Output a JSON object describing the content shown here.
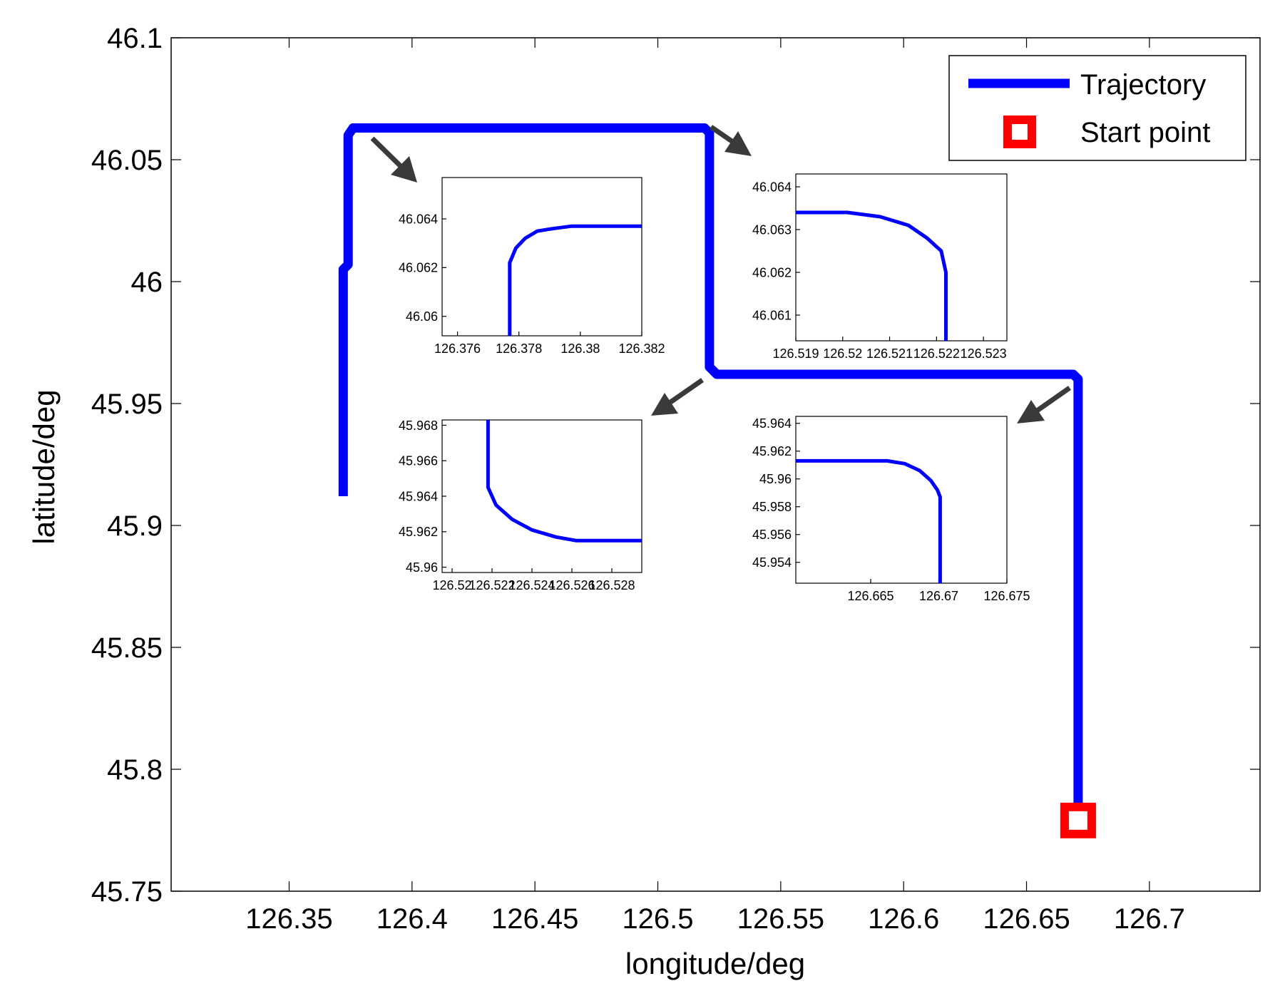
{
  "colors": {
    "trajectory": "#0000ff",
    "start": "#ff0000",
    "axes": "#000000",
    "arrow": "#3a3a3a"
  },
  "chart_data": [
    {
      "type": "line",
      "role": "main",
      "xlabel": "longitude/deg",
      "ylabel": "latitude/deg",
      "xlim": [
        126.302,
        126.745
      ],
      "ylim": [
        45.75,
        46.1
      ],
      "xticks": [
        "126.35",
        "126.4",
        "126.45",
        "126.5",
        "126.55",
        "126.6",
        "126.65",
        "126.7"
      ],
      "xtick_values": [
        126.35,
        126.4,
        126.45,
        126.5,
        126.55,
        126.6,
        126.65,
        126.7
      ],
      "yticks": [
        "45.75",
        "45.8",
        "45.85",
        "45.9",
        "45.95",
        "46",
        "46.05",
        "46.1"
      ],
      "ytick_values": [
        45.75,
        45.8,
        45.85,
        45.9,
        45.95,
        46.0,
        46.05,
        46.1
      ],
      "grid": false,
      "legend": {
        "placement": "top-right",
        "entries": [
          "Trajectory",
          "Start point"
        ]
      },
      "series": [
        {
          "name": "Trajectory",
          "x": [
            126.372,
            126.372,
            126.374,
            126.374,
            126.376,
            126.519,
            126.521,
            126.521,
            126.524,
            126.669,
            126.671,
            126.671
          ],
          "y": [
            45.912,
            46.005,
            46.007,
            46.06,
            46.063,
            46.063,
            46.061,
            45.965,
            45.962,
            45.962,
            45.96,
            45.782
          ]
        },
        {
          "name": "Start point",
          "x": [
            126.671
          ],
          "y": [
            45.779
          ]
        }
      ]
    },
    {
      "type": "line",
      "role": "inset",
      "xlim": [
        126.3755,
        126.382
      ],
      "ylim": [
        46.0592,
        46.0657
      ],
      "xticks": [
        "126.376",
        "126.378",
        "126.38",
        "126.382"
      ],
      "xtick_values": [
        126.376,
        126.378,
        126.38,
        126.382
      ],
      "yticks": [
        "46.06",
        "46.062",
        "46.064"
      ],
      "ytick_values": [
        46.06,
        46.062,
        46.064
      ],
      "series": [
        {
          "x": [
            126.3777,
            126.3777,
            126.3779,
            126.3782,
            126.3786,
            126.3791,
            126.3797,
            126.382
          ],
          "y": [
            46.0592,
            46.0622,
            46.0628,
            46.0632,
            46.0635,
            46.0636,
            46.0637,
            46.0637
          ]
        }
      ]
    },
    {
      "type": "line",
      "role": "inset",
      "xlim": [
        126.519,
        126.5235
      ],
      "ylim": [
        46.0604,
        46.0643
      ],
      "xticks": [
        "126.519",
        "126.52",
        "126.521",
        "126.522",
        "126.523"
      ],
      "xtick_values": [
        126.519,
        126.52,
        126.521,
        126.522,
        126.523
      ],
      "yticks": [
        "46.061",
        "46.062",
        "46.063",
        "46.064"
      ],
      "ytick_values": [
        46.061,
        46.062,
        46.063,
        46.064
      ],
      "series": [
        {
          "x": [
            126.519,
            126.5201,
            126.5208,
            126.5214,
            126.5218,
            126.5221,
            126.5222,
            126.5222
          ],
          "y": [
            46.0634,
            46.0634,
            46.0633,
            46.0631,
            46.0628,
            46.0625,
            46.062,
            46.0604
          ]
        }
      ]
    },
    {
      "type": "line",
      "role": "inset",
      "xlim": [
        126.5195,
        126.5295
      ],
      "ylim": [
        45.9597,
        45.9683
      ],
      "xticks": [
        "126.52",
        "126.522",
        "126.524",
        "126.526",
        "126.528"
      ],
      "xtick_values": [
        126.52,
        126.522,
        126.524,
        126.526,
        126.528
      ],
      "yticks": [
        "45.96",
        "45.962",
        "45.964",
        "45.966",
        "45.968"
      ],
      "ytick_values": [
        45.96,
        45.962,
        45.964,
        45.966,
        45.968
      ],
      "series": [
        {
          "x": [
            126.5218,
            126.5218,
            126.5222,
            126.523,
            126.524,
            126.5252,
            126.5262,
            126.5295
          ],
          "y": [
            45.9683,
            45.9645,
            45.9635,
            45.9627,
            45.9621,
            45.9617,
            45.9615,
            45.9615
          ]
        }
      ]
    },
    {
      "type": "line",
      "role": "inset",
      "xlim": [
        126.6595,
        126.675
      ],
      "ylim": [
        45.9525,
        45.9645
      ],
      "xticks": [
        "126.665",
        "126.67",
        "126.675"
      ],
      "xtick_values": [
        126.665,
        126.67,
        126.675
      ],
      "yticks": [
        "45.954",
        "45.956",
        "45.958",
        "45.96",
        "45.962",
        "45.964"
      ],
      "ytick_values": [
        45.954,
        45.956,
        45.958,
        45.96,
        45.962,
        45.964
      ],
      "series": [
        {
          "x": [
            126.6595,
            126.6662,
            126.6675,
            126.6686,
            126.6694,
            126.6699,
            126.6701,
            126.6701
          ],
          "y": [
            45.9613,
            45.9613,
            45.9611,
            45.9606,
            45.9599,
            45.9592,
            45.9587,
            45.9525
          ]
        }
      ]
    }
  ]
}
